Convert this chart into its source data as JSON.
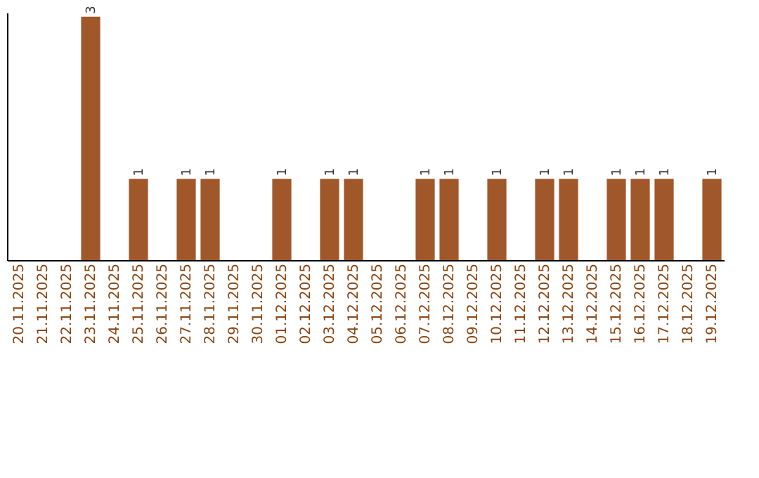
{
  "chart_data": {
    "type": "bar",
    "categories": [
      "20.11.2025",
      "21.11.2025",
      "22.11.2025",
      "23.11.2025",
      "24.11.2025",
      "25.11.2025",
      "26.11.2025",
      "27.11.2025",
      "28.11.2025",
      "29.11.2025",
      "30.11.2025",
      "01.12.2025",
      "02.12.2025",
      "03.12.2025",
      "04.12.2025",
      "05.12.2025",
      "06.12.2025",
      "07.12.2025",
      "08.12.2025",
      "09.12.2025",
      "10.12.2025",
      "11.12.2025",
      "12.12.2025",
      "13.12.2025",
      "14.12.2025",
      "15.12.2025",
      "16.12.2025",
      "17.12.2025",
      "18.12.2025",
      "19.12.2025"
    ],
    "values": [
      0,
      0,
      0,
      3,
      0,
      1,
      0,
      1,
      1,
      0,
      0,
      1,
      0,
      1,
      1,
      0,
      0,
      1,
      1,
      0,
      1,
      0,
      1,
      1,
      0,
      1,
      1,
      1,
      0,
      1
    ],
    "value_labels": [
      null,
      null,
      null,
      "3",
      null,
      "1",
      null,
      "1",
      "1",
      null,
      null,
      "1",
      null,
      "1",
      "1",
      null,
      null,
      "1",
      "1",
      null,
      "1",
      null,
      "1",
      "1",
      null,
      "1",
      "1",
      "1",
      null,
      "1"
    ],
    "color": "#a0582a",
    "ylim": [
      0,
      3.05
    ],
    "tick_labels": "x",
    "grid": false
  }
}
